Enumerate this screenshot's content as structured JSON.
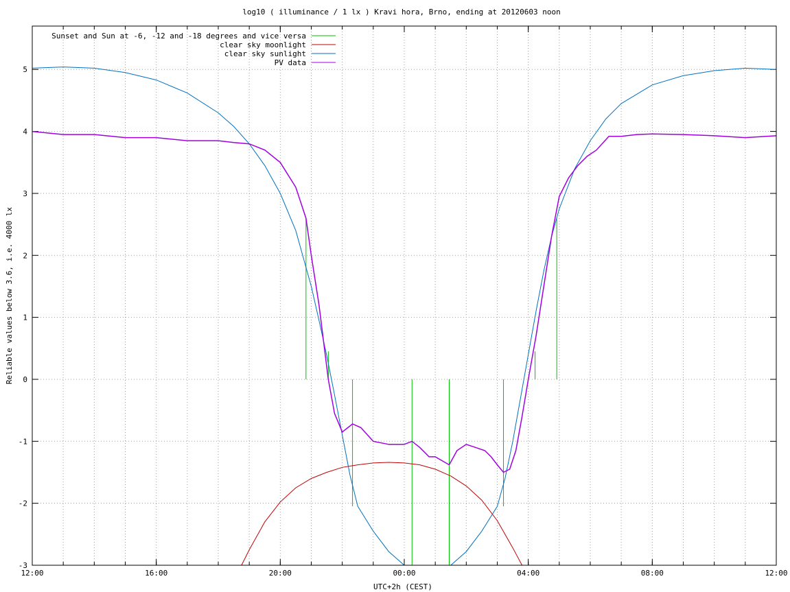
{
  "chart_data": {
    "type": "line",
    "title": "log10 ( illuminance / 1 lx ) Kravi hora, Brno, ending at 20120603 noon",
    "xlabel": "UTC+2h (CEST)",
    "ylabel": "Reliable values below 3.6, i.e. 4000 lx",
    "x_range_hours": [
      12,
      36
    ],
    "ylim": [
      -3,
      5.7
    ],
    "x_tick_hours": [
      12,
      16,
      20,
      24,
      28,
      32,
      36
    ],
    "x_ticks": [
      "12:00",
      "16:00",
      "20:00",
      "00:00",
      "04:00",
      "08:00",
      "12:00"
    ],
    "y_ticks": [
      "-3",
      "-2",
      "-1",
      "0",
      "1",
      "2",
      "3",
      "4",
      "5"
    ],
    "grid": true,
    "legend_position": "top-left",
    "series": [
      {
        "name": "Sunset and Sun at -6, -12 and -18 degrees and vice versa",
        "color": "#00c000",
        "markers": [
          {
            "x": 20.83,
            "y_top": 2.6,
            "y_bottom": 0
          },
          {
            "x": 21.55,
            "y_top": 0.45,
            "y_bottom": 0
          },
          {
            "x": 22.33,
            "y_top": 0,
            "y_bottom": -2.05
          },
          {
            "x": 24.25,
            "y_top": 0,
            "y_bottom": -3
          },
          {
            "x": 25.45,
            "y_top": 0,
            "y_bottom": -3
          },
          {
            "x": 27.2,
            "y_top": 0,
            "y_bottom": -2.05
          },
          {
            "x": 28.22,
            "y_top": 0.45,
            "y_bottom": 0
          },
          {
            "x": 28.92,
            "y_top": 2.6,
            "y_bottom": 0
          }
        ]
      },
      {
        "name": "clear sky moonlight",
        "color": "#c00000",
        "x": [
          18.75,
          19.0,
          19.5,
          20.0,
          20.5,
          21.0,
          21.5,
          22.0,
          22.5,
          23.0,
          23.5,
          24.0,
          24.5,
          25.0,
          25.5,
          26.0,
          26.5,
          27.0,
          27.5,
          27.8
        ],
        "y": [
          -3.0,
          -2.75,
          -2.3,
          -1.98,
          -1.75,
          -1.6,
          -1.5,
          -1.42,
          -1.38,
          -1.35,
          -1.34,
          -1.35,
          -1.38,
          -1.45,
          -1.56,
          -1.72,
          -1.95,
          -2.28,
          -2.72,
          -3.0
        ]
      },
      {
        "name": "clear sky sunlight",
        "color": "#0070c0",
        "x": [
          12.0,
          13.0,
          14.0,
          15.0,
          16.0,
          17.0,
          18.0,
          18.5,
          19.0,
          19.5,
          20.0,
          20.5,
          21.0,
          21.25,
          21.5,
          21.75,
          22.0,
          22.25,
          22.5,
          23.0,
          23.5,
          24.0,
          24.25,
          25.5,
          26.0,
          26.5,
          27.0,
          27.25,
          27.5,
          27.75,
          28.0,
          28.25,
          28.5,
          28.75,
          29.0,
          29.5,
          30.0,
          30.5,
          31.0,
          32.0,
          33.0,
          34.0,
          35.0,
          36.0
        ],
        "y": [
          5.02,
          5.04,
          5.02,
          4.95,
          4.83,
          4.62,
          4.3,
          4.08,
          3.8,
          3.45,
          3.0,
          2.4,
          1.5,
          0.95,
          0.38,
          -0.25,
          -0.9,
          -1.55,
          -2.05,
          -2.45,
          -2.78,
          -3.0,
          -3.05,
          -3.05,
          -2.78,
          -2.45,
          -2.05,
          -1.6,
          -1.0,
          -0.3,
          0.4,
          1.1,
          1.75,
          2.3,
          2.75,
          3.4,
          3.85,
          4.2,
          4.45,
          4.75,
          4.9,
          4.98,
          5.02,
          5.0
        ]
      },
      {
        "name": "PV data",
        "color": "#a000e0",
        "x": [
          12.0,
          13.0,
          14.0,
          15.0,
          16.0,
          17.0,
          18.0,
          18.5,
          19.0,
          19.5,
          20.0,
          20.5,
          20.83,
          21.0,
          21.25,
          21.55,
          21.75,
          22.0,
          22.33,
          22.6,
          23.0,
          23.5,
          24.0,
          24.25,
          24.5,
          24.8,
          25.0,
          25.45,
          25.7,
          26.0,
          26.3,
          26.6,
          26.8,
          27.0,
          27.2,
          27.4,
          27.6,
          27.8,
          28.0,
          28.25,
          28.5,
          28.75,
          29.0,
          29.3,
          29.6,
          29.9,
          30.2,
          30.6,
          31.0,
          31.5,
          32.0,
          33.0,
          34.0,
          35.0,
          36.0
        ],
        "y": [
          4.0,
          3.95,
          3.95,
          3.9,
          3.9,
          3.85,
          3.85,
          3.82,
          3.8,
          3.7,
          3.5,
          3.1,
          2.6,
          2.0,
          1.2,
          0.0,
          -0.55,
          -0.85,
          -0.72,
          -0.78,
          -1.0,
          -1.05,
          -1.05,
          -1.0,
          -1.1,
          -1.25,
          -1.25,
          -1.38,
          -1.15,
          -1.05,
          -1.1,
          -1.15,
          -1.25,
          -1.38,
          -1.5,
          -1.45,
          -1.15,
          -0.6,
          0.0,
          0.7,
          1.5,
          2.3,
          2.95,
          3.25,
          3.45,
          3.6,
          3.7,
          3.92,
          3.92,
          3.95,
          3.96,
          3.95,
          3.93,
          3.9,
          3.93
        ]
      }
    ]
  }
}
